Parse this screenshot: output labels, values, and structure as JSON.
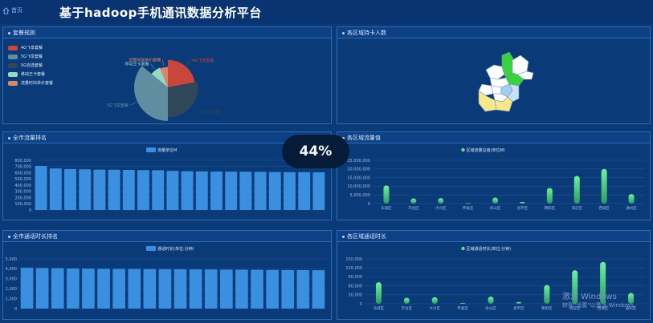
{
  "header": {
    "home_label": "首页",
    "title": "基于hadoop手机通讯数据分析平台"
  },
  "colors": {
    "bar_blue": "#3a8fe0",
    "green_gradient_top": "#6ff0a0",
    "green_gradient_bottom": "#2b9f62"
  },
  "icons": {
    "home": "home-icon"
  },
  "panels": {
    "package": {
      "title": "套餐规则",
      "legend": [
        {
          "label": "4G飞享套餐",
          "color": "#c8463b"
        },
        {
          "label": "5G飞享套餐",
          "color": "#5f8ea0"
        },
        {
          "label": "5G自选套餐",
          "color": "#2f4759"
        },
        {
          "label": "移动王卡套餐",
          "color": "#9ad7c3"
        },
        {
          "label": "流量时尚单价套餐",
          "color": "#d6876d"
        }
      ]
    },
    "region_card": {
      "title": "各区域持卡人数"
    },
    "city_traffic": {
      "title": "全市流量排名"
    },
    "region_traffic": {
      "title": "各区域流量值"
    },
    "city_call": {
      "title": "全市通话时长排名"
    },
    "region_call": {
      "title": "各区域通话时长"
    }
  },
  "overlay": {
    "progress_text": "44%"
  },
  "watermark": {
    "line1": "激活 Windows",
    "line2": "转到\"设置\"以激活 Windows。"
  },
  "chart_data": [
    {
      "type": "pie",
      "title": "",
      "slices": [
        {
          "label": "4G飞享套餐",
          "value": 22
        },
        {
          "label": "5G自选套餐",
          "value": 28
        },
        {
          "label": "5G飞享套餐",
          "value": 36
        },
        {
          "label": "移动王卡套餐",
          "value": 8
        },
        {
          "label": "流量时尚单价套餐",
          "value": 6
        }
      ],
      "radius_style": "rose"
    },
    {
      "type": "bar",
      "title": "",
      "legend": "流量单位M",
      "ylim": [
        0,
        800000
      ],
      "yticks": [
        "800,000",
        "700,000",
        "600,000",
        "500,000",
        "400,000",
        "300,000",
        "200,000",
        "100,000",
        "0"
      ],
      "values": [
        710000,
        670000,
        660000,
        655000,
        650000,
        648000,
        645000,
        642000,
        640000,
        630000,
        625000,
        622000,
        620000,
        618000,
        616000,
        614000,
        612000,
        610000,
        608000,
        606000
      ]
    },
    {
      "type": "bar",
      "title": "",
      "legend": "区域流量总值(单位M)",
      "ylim": [
        0,
        25000000
      ],
      "yticks": [
        "25,000,000",
        "20,000,000",
        "15,000,000",
        "10,000,000",
        "5,000,000",
        "0"
      ],
      "categories": [
        "东城区",
        "丰台区",
        "大兴区",
        "怀柔区",
        "房山区",
        "昌平区",
        "朝阳区",
        "海淀区",
        "西城区",
        "通州区"
      ],
      "values": [
        10500000,
        3000000,
        3200000,
        300000,
        3500000,
        1000000,
        9000000,
        16000000,
        20000000,
        5500000
      ]
    },
    {
      "type": "bar",
      "title": "",
      "legend": "通话时长(单位:分钟)",
      "ylim": [
        0,
        5000
      ],
      "yticks": [
        "5,000",
        "4,000",
        "3,000",
        "2,000",
        "1,000",
        "0"
      ],
      "values": [
        4100,
        4080,
        4060,
        4040,
        4020,
        4000,
        3990,
        3980,
        3970,
        3960,
        3950,
        3940,
        3930,
        3920,
        3910,
        3900,
        3890,
        3880,
        3870,
        3860
      ]
    },
    {
      "type": "bar",
      "title": "",
      "legend": "区域通话时长(单位:分钟)",
      "ylim": [
        0,
        150000
      ],
      "yticks": [
        "150,000",
        "120,000",
        "90,000",
        "60,000",
        "30,000",
        "0"
      ],
      "categories": [
        "东城区",
        "丰台区",
        "大兴区",
        "怀柔区",
        "房山区",
        "昌平区",
        "朝阳区",
        "海淀区",
        "西城区",
        "通州区"
      ],
      "values": [
        72000,
        20000,
        22000,
        3000,
        24000,
        6000,
        63000,
        112000,
        140000,
        36000
      ]
    }
  ]
}
